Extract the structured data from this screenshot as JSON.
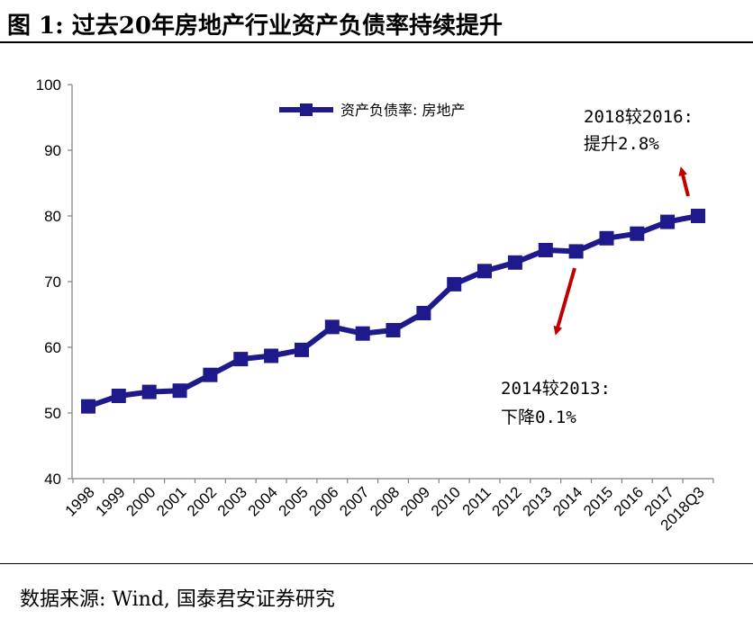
{
  "title": "图 1: 过去20年房地产行业资产负债率持续提升",
  "source": "数据来源: Wind, 国泰君安证券研究",
  "colors": {
    "series": "#1f1a8c",
    "arrow": "#c00000"
  },
  "chart_data": {
    "type": "line",
    "categories": [
      "1998",
      "1999",
      "2000",
      "2001",
      "2002",
      "2003",
      "2004",
      "2005",
      "2006",
      "2007",
      "2008",
      "2009",
      "2010",
      "2011",
      "2012",
      "2013",
      "2014",
      "2015",
      "2016",
      "2017",
      "2018Q3"
    ],
    "series": [
      {
        "name": "资产负债率: 房地产",
        "values": [
          51.0,
          52.6,
          53.2,
          53.4,
          55.8,
          58.2,
          58.7,
          59.6,
          63.1,
          62.1,
          62.6,
          65.2,
          69.6,
          71.6,
          72.9,
          74.8,
          74.6,
          76.6,
          77.3,
          79.1,
          80.0
        ]
      }
    ],
    "ylim": [
      40,
      100
    ],
    "yticks": [
      "40",
      "50",
      "60",
      "70",
      "80",
      "90",
      "100"
    ],
    "legend": "top",
    "grid": false,
    "annotations": [
      {
        "line1": "2018较2016:",
        "line2": "提升2.8%"
      },
      {
        "line1": "2014较2013:",
        "line2": "下降0.1%"
      }
    ]
  }
}
